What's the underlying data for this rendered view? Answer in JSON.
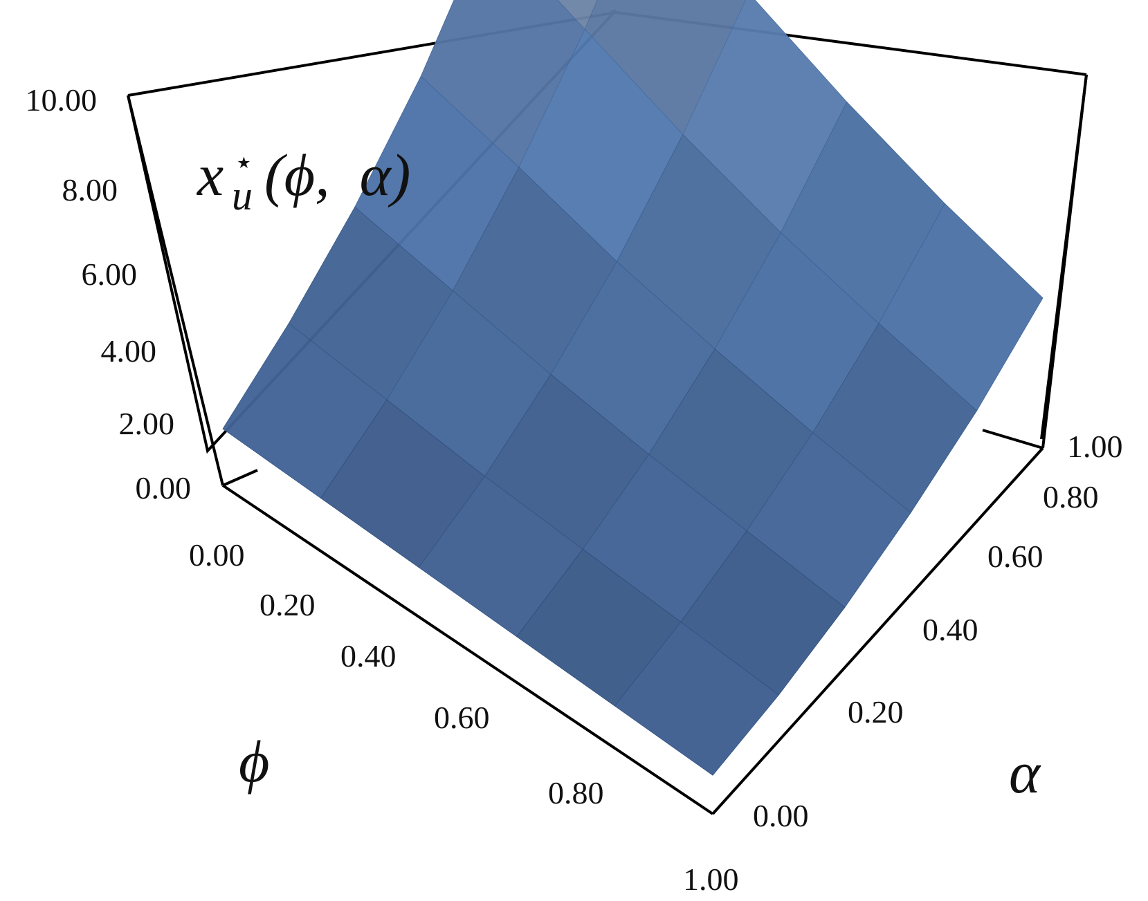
{
  "chart_data": {
    "type": "surface",
    "title": {
      "base": "x",
      "subscript": "u",
      "superscript": "⋆",
      "args": "(ϕ,  α)"
    },
    "xlabel": "ϕ",
    "ylabel": "α",
    "x_ticks": [
      "0.00",
      "0.20",
      "0.40",
      "0.60",
      "0.80",
      "1.00"
    ],
    "y_ticks": [
      "0.00",
      "0.20",
      "0.40",
      "0.60",
      "0.80",
      "1.00"
    ],
    "z_ticks": [
      "0.00",
      "2.00",
      "4.00",
      "6.00",
      "8.00",
      "10.00"
    ],
    "xlim": [
      0,
      1
    ],
    "ylim": [
      0,
      1
    ],
    "zlim": [
      0,
      10
    ],
    "x": [
      0,
      0.2,
      0.4,
      0.6,
      0.8,
      1.0
    ],
    "y": [
      0,
      0.2,
      0.4,
      0.6,
      0.8,
      1.0
    ],
    "z": [
      [
        0.9,
        1.8,
        3.0,
        4.6,
        6.8,
        9.6
      ],
      [
        0.8,
        1.5,
        2.5,
        3.9,
        5.7,
        8.0
      ],
      [
        0.7,
        1.2,
        2.0,
        3.1,
        4.6,
        6.5
      ],
      [
        0.6,
        1.0,
        1.6,
        2.5,
        3.7,
        5.3
      ],
      [
        0.5,
        0.8,
        1.3,
        2.0,
        3.0,
        4.3
      ],
      [
        0.4,
        0.6,
        1.0,
        1.6,
        2.4,
        3.5
      ]
    ],
    "colors": {
      "low": "#3a5a8a",
      "mid": "#4a76b0",
      "high": "#7d8aa0",
      "edge": "#6a9ad6"
    }
  }
}
